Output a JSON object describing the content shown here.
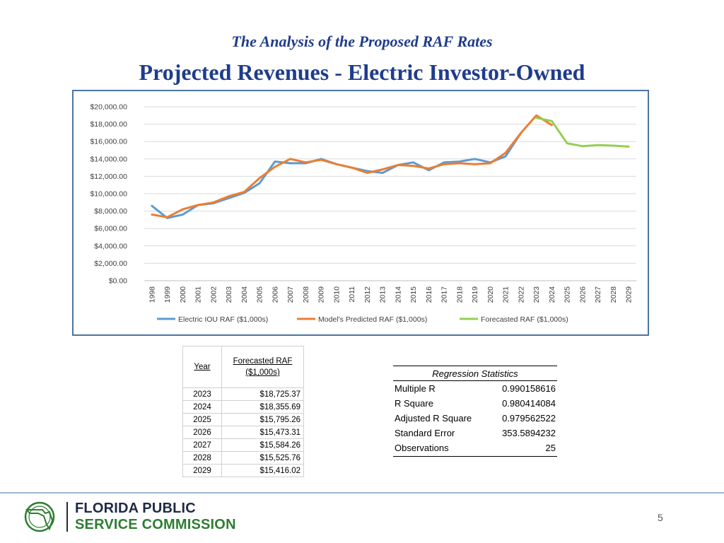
{
  "header": {
    "subtitle": "The Analysis of the Proposed RAF Rates",
    "title": "Projected Revenues - Electric Investor-Owned"
  },
  "chart_data": {
    "type": "line",
    "categories": [
      "1998",
      "1999",
      "2000",
      "2001",
      "2002",
      "2003",
      "2004",
      "2005",
      "2006",
      "2007",
      "2008",
      "2009",
      "2010",
      "2011",
      "2012",
      "2013",
      "2014",
      "2015",
      "2016",
      "2017",
      "2018",
      "2019",
      "2020",
      "2021",
      "2022",
      "2023",
      "2024",
      "2025",
      "2026",
      "2027",
      "2028",
      "2029"
    ],
    "ylim": [
      0,
      20000
    ],
    "yticks": [
      0,
      2000,
      4000,
      6000,
      8000,
      10000,
      12000,
      14000,
      16000,
      18000,
      20000
    ],
    "ytick_labels": [
      "$0.00",
      "$2,000.00",
      "$4,000.00",
      "$6,000.00",
      "$8,000.00",
      "$10,000.00",
      "$12,000.00",
      "$14,000.00",
      "$16,000.00",
      "$18,000.00",
      "$20,000.00"
    ],
    "grid": true,
    "legend_position": "bottom",
    "series": [
      {
        "name": "Electric IOU RAF ($1,000s)",
        "color": "#5b9bd5",
        "values": [
          8600,
          7200,
          7600,
          8700,
          8900,
          9500,
          10100,
          11200,
          13700,
          13500,
          13500,
          14000,
          13400,
          13000,
          12600,
          12400,
          13300,
          13600,
          12700,
          13600,
          13700,
          14000,
          13600,
          14300,
          17000,
          null,
          null,
          null,
          null,
          null,
          null,
          null
        ]
      },
      {
        "name": "Model's Predicted RAF ($1,000s)",
        "color": "#ed7d31",
        "values": [
          7600,
          7300,
          8200,
          8700,
          9000,
          9700,
          10200,
          11800,
          13100,
          14000,
          13600,
          13900,
          13400,
          13000,
          12400,
          12800,
          13300,
          13200,
          12900,
          13400,
          13500,
          13400,
          13500,
          14700,
          17000,
          19000,
          17900,
          null,
          null,
          null,
          null,
          null
        ]
      },
      {
        "name": "Forecasted RAF ($1,000s)",
        "color": "#92d050",
        "values": [
          null,
          null,
          null,
          null,
          null,
          null,
          null,
          null,
          null,
          null,
          null,
          null,
          null,
          null,
          null,
          null,
          null,
          null,
          null,
          null,
          null,
          null,
          null,
          null,
          null,
          18725.37,
          18355.69,
          15795.26,
          15473.31,
          15584.26,
          15525.76,
          15416.02
        ]
      }
    ]
  },
  "forecast_table": {
    "year_header": "Year",
    "value_header_line1": "Forecasted RAF",
    "value_header_line2": "($1,000s)",
    "rows": [
      {
        "year": "2023",
        "value": "$18,725.37"
      },
      {
        "year": "2024",
        "value": "$18,355.69"
      },
      {
        "year": "2025",
        "value": "$15,795.26"
      },
      {
        "year": "2026",
        "value": "$15,473.31"
      },
      {
        "year": "2027",
        "value": "$15,584.26"
      },
      {
        "year": "2028",
        "value": "$15,525.76"
      },
      {
        "year": "2029",
        "value": "$15,416.02"
      }
    ]
  },
  "regression": {
    "title": "Regression Statistics",
    "rows": [
      {
        "label": "Multiple R",
        "value": "0.990158616"
      },
      {
        "label": "R Square",
        "value": "0.980414084"
      },
      {
        "label": "Adjusted R Square",
        "value": "0.979562522"
      },
      {
        "label": "Standard Error",
        "value": "353.5894232"
      },
      {
        "label": "Observations",
        "value": "25"
      }
    ]
  },
  "footer": {
    "org_line1": "FLORIDA PUBLIC",
    "org_line2": "SERVICE COMMISSION",
    "page_number": "5",
    "logo_icon": "florida-seal-icon",
    "brand_green": "#2e7d32",
    "brand_dark": "#1f2a44"
  }
}
